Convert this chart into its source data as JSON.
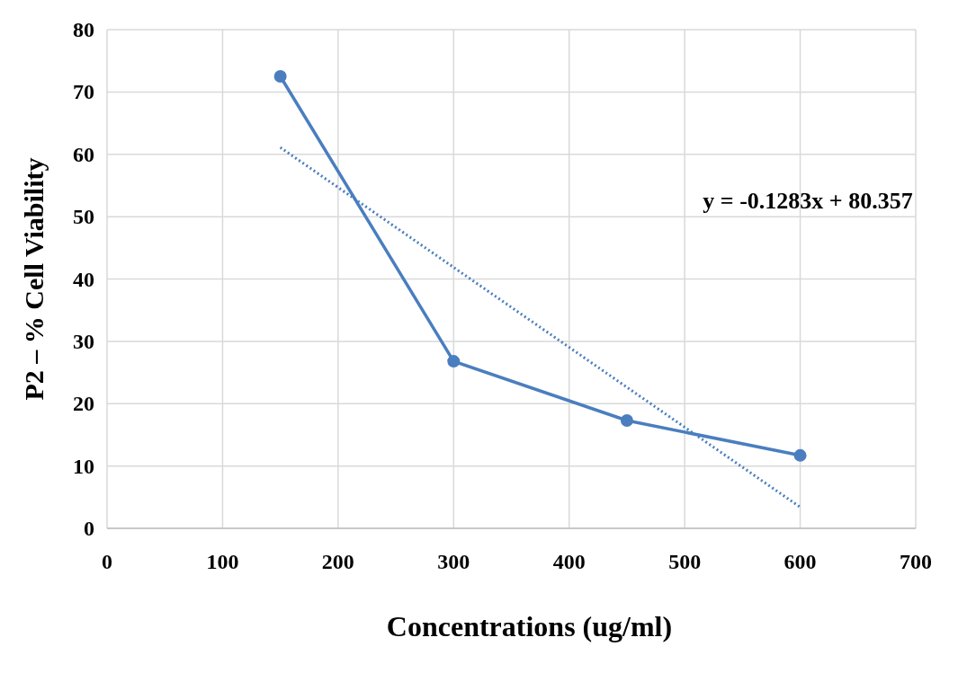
{
  "chart_data": {
    "type": "line",
    "xlabel": "Concentrations (ug/ml)",
    "ylabel": "P2 – % Cell Viability",
    "x": [
      150,
      300,
      450,
      600
    ],
    "series": [
      {
        "color": "#4a7ebf",
        "values": [
          72.5,
          26.8,
          17.3,
          11.7
        ],
        "marker": "circle",
        "line_style": "solid"
      },
      {
        "type": "line",
        "color": "#4a7ebf",
        "x": [
          150,
          600
        ],
        "values": [
          61.1,
          3.4
        ],
        "marker": "none",
        "line_style": "dotted"
      }
    ],
    "xlim": [
      0,
      700
    ],
    "xticks": [
      0,
      100,
      200,
      300,
      400,
      500,
      600,
      700
    ],
    "ylim": [
      0,
      80
    ],
    "yticks": [
      0,
      10,
      20,
      30,
      40,
      50,
      60,
      70,
      80
    ],
    "grid": true,
    "annotations": [
      "y = -0.1283x + 80.357"
    ]
  }
}
